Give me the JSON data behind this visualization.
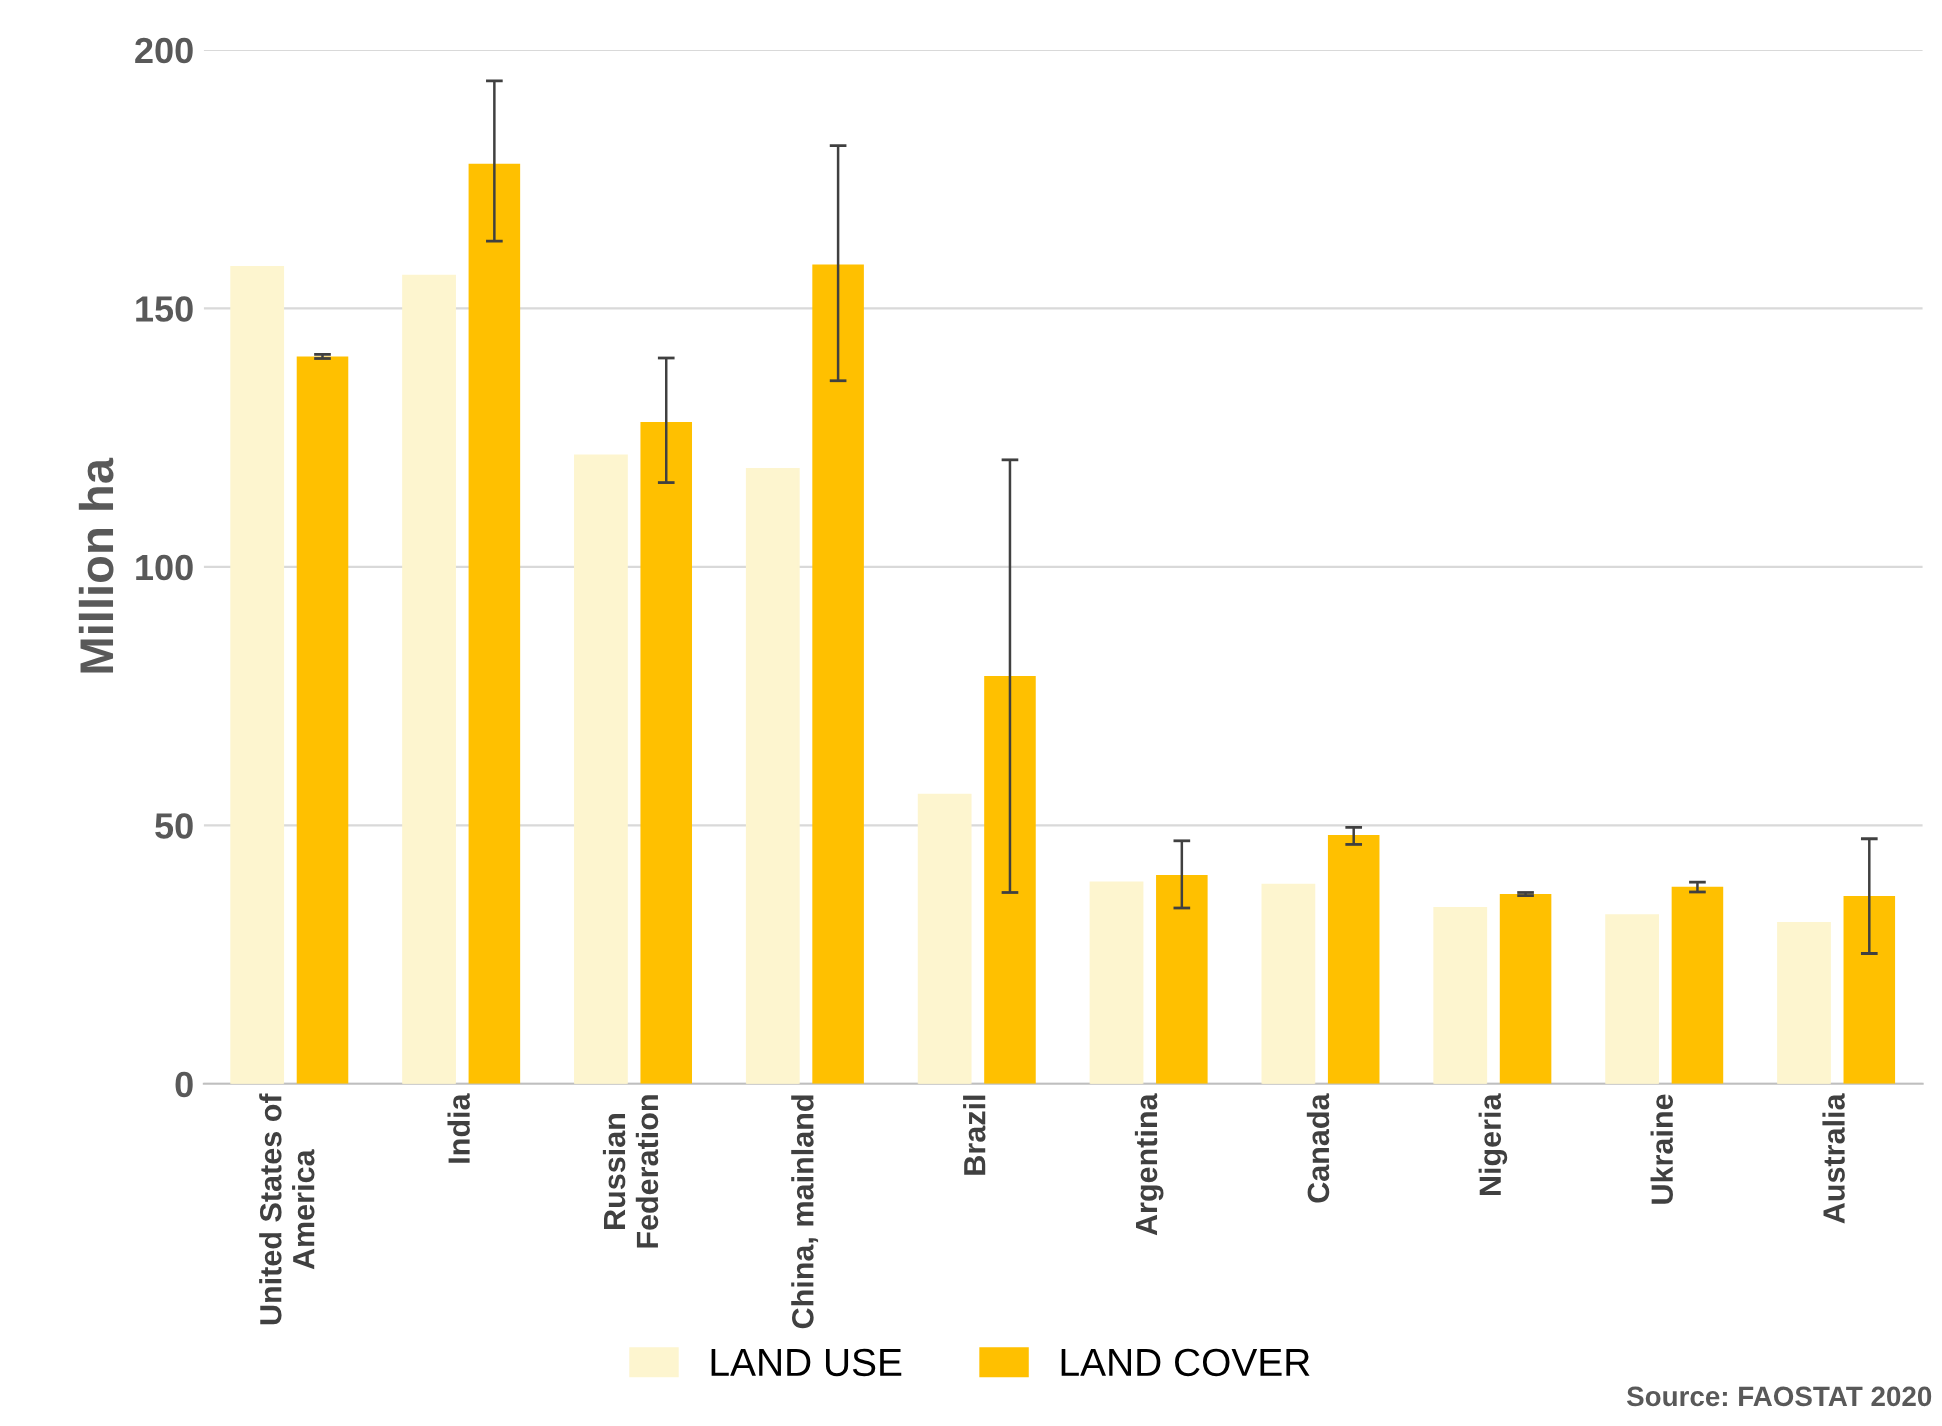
{
  "chart_data": {
    "type": "bar",
    "ylabel": "Million ha",
    "categories": [
      "United States of\nAmerica",
      "India",
      "Russian\nFederation",
      "China, mainland",
      "Brazil",
      "Argentina",
      "Canada",
      "Nigeria",
      "Ukraine",
      "Australia"
    ],
    "series": [
      {
        "name": "LAND USE",
        "color": "#fdf5cf",
        "values": [
          158,
          156.3,
          121.5,
          118.9,
          55.9,
          38.9,
          38.5,
          34,
          32.6,
          31.1
        ]
      },
      {
        "name": "LAND COVER",
        "color": "#ffc000",
        "values": [
          140.7,
          178,
          128,
          158.5,
          78.9,
          40.4,
          48.1,
          36.7,
          38.1,
          36.3
        ],
        "errors": [
          [
            140.3,
            141.1
          ],
          [
            163,
            194
          ],
          [
            116.3,
            140.4
          ],
          [
            136,
            181.5
          ],
          [
            37,
            120.7
          ],
          [
            34,
            47
          ],
          [
            46.3,
            49.6
          ],
          [
            36.4,
            37
          ],
          [
            37.1,
            39
          ],
          [
            25.2,
            47.4
          ]
        ]
      }
    ],
    "ylim": [
      0,
      200
    ],
    "yticks": [
      0,
      50,
      100,
      150,
      200
    ],
    "grid": "y",
    "legend": "bottom",
    "annotations": [
      "Source: FAOSTAT 2020"
    ]
  }
}
